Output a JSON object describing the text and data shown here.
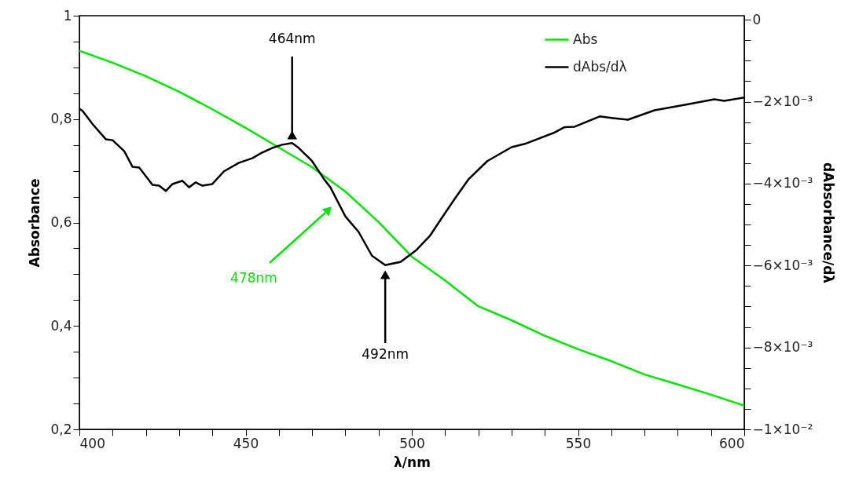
{
  "chart_data": {
    "type": "line",
    "xlabel": "λ/nm",
    "ylabel": "Absorbance",
    "y2label": "dAbsorbance/dλ",
    "xlim": [
      400,
      600
    ],
    "xticks": [
      400,
      {
        "value": 410,
        "label": null
      },
      {
        "value": 420,
        "label": null
      },
      {
        "value": 430,
        "label": null
      },
      {
        "value": 440,
        "label": null
      },
      450,
      {
        "value": 460,
        "label": null
      },
      {
        "value": 470,
        "label": null
      },
      {
        "value": 480,
        "label": null
      },
      {
        "value": 490,
        "label": null
      },
      500,
      {
        "value": 510,
        "label": null
      },
      {
        "value": 520,
        "label": null
      },
      {
        "value": 530,
        "label": null
      },
      {
        "value": 540,
        "label": null
      },
      550,
      {
        "value": 560,
        "label": null
      },
      {
        "value": 570,
        "label": null
      },
      {
        "value": 580,
        "label": null
      },
      {
        "value": 590,
        "label": null
      },
      600
    ],
    "ylim": [
      0.2,
      1
    ],
    "yticks": [
      {
        "value": 0.2,
        "label": "0,2"
      },
      {
        "value": 0.25,
        "label": null
      },
      {
        "value": 0.3,
        "label": null
      },
      {
        "value": 0.35,
        "label": null
      },
      {
        "value": 0.4,
        "label": "0,4"
      },
      {
        "value": 0.45,
        "label": null
      },
      {
        "value": 0.5,
        "label": null
      },
      {
        "value": 0.55,
        "label": null
      },
      {
        "value": 0.6,
        "label": "0,6"
      },
      {
        "value": 0.65,
        "label": null
      },
      {
        "value": 0.7,
        "label": null
      },
      {
        "value": 0.75,
        "label": null
      },
      {
        "value": 0.8,
        "label": "0,8"
      },
      {
        "value": 0.85,
        "label": null
      },
      {
        "value": 0.9,
        "label": null
      },
      {
        "value": 0.95,
        "label": null
      },
      1
    ],
    "y2lim": [
      -0.01,
      0.0001
    ],
    "y2ticks": [
      {
        "value": -0.01,
        "label": "−1×10⁻²"
      },
      {
        "value": -0.0095,
        "label": null
      },
      {
        "value": -0.009,
        "label": null
      },
      {
        "value": -0.0085,
        "label": null
      },
      {
        "value": -0.008,
        "label": "−8×10⁻³"
      },
      {
        "value": -0.0075,
        "label": null
      },
      {
        "value": -0.007,
        "label": null
      },
      {
        "value": -0.0065,
        "label": null
      },
      {
        "value": -0.006,
        "label": "−6×10⁻³"
      },
      {
        "value": -0.0055,
        "label": null
      },
      {
        "value": -0.005,
        "label": null
      },
      {
        "value": -0.0045,
        "label": null
      },
      {
        "value": -0.004,
        "label": "−4×10⁻³"
      },
      {
        "value": -0.0035,
        "label": null
      },
      {
        "value": -0.003,
        "label": null
      },
      {
        "value": -0.0025,
        "label": null
      },
      {
        "value": -0.002,
        "label": "−2×10⁻³"
      },
      {
        "value": -0.0015,
        "label": null
      },
      {
        "value": -0.001,
        "label": null
      },
      {
        "value": -0.0005,
        "label": null
      },
      0
    ],
    "grid": false,
    "legend": "top right",
    "marker": "none",
    "line_style": "solid",
    "series": [
      {
        "name": "Abs",
        "color": "#00e600",
        "x": [
          400,
          410,
          420,
          430,
          440,
          450,
          460,
          470,
          480,
          490,
          500,
          510,
          520,
          530,
          540,
          550,
          560,
          570,
          580,
          590,
          600
        ],
        "values": [
          0.932,
          0.909,
          0.883,
          0.853,
          0.819,
          0.783,
          0.745,
          0.707,
          0.66,
          0.601,
          0.534,
          0.488,
          0.438,
          0.411,
          0.381,
          0.355,
          0.332,
          0.306,
          0.287,
          0.267,
          0.246
        ]
      },
      {
        "name": "dAbs/dλ",
        "color": "#000000",
        "axis": "y2",
        "x": [
          400,
          401,
          404,
          408,
          410,
          413.5,
          416,
          418,
          422,
          424,
          426,
          428,
          431,
          433,
          435,
          437,
          440,
          443.5,
          448,
          452,
          455,
          458,
          461,
          464,
          466,
          470,
          473.5,
          475.5,
          480,
          484,
          488,
          492,
          496.7,
          501.4,
          505.4,
          509,
          513,
          517,
          522.7,
          530,
          534,
          543,
          546,
          549,
          556.5,
          560.5,
          565,
          573,
          582.5,
          591,
          594,
          600
        ],
        "values": [
          -0.00217,
          -0.00223,
          -0.00255,
          -0.00292,
          -0.00294,
          -0.00321,
          -0.00359,
          -0.00361,
          -0.00403,
          -0.00405,
          -0.00418,
          -0.00401,
          -0.00393,
          -0.00409,
          -0.00397,
          -0.00405,
          -0.00401,
          -0.0037,
          -0.00349,
          -0.00338,
          -0.00324,
          -0.00313,
          -0.00305,
          -0.00301,
          -0.00313,
          -0.00345,
          -0.00388,
          -0.00409,
          -0.0048,
          -0.00518,
          -0.00576,
          -0.00599,
          -0.00591,
          -0.00562,
          -0.00528,
          -0.00484,
          -0.00436,
          -0.0039,
          -0.00345,
          -0.00311,
          -0.00303,
          -0.00275,
          -0.00262,
          -0.00261,
          -0.00236,
          -0.0024,
          -0.00244,
          -0.00221,
          -0.00207,
          -0.00194,
          -0.00198,
          -0.0019
        ]
      }
    ],
    "annotations": [
      {
        "text": "464nm",
        "x": 464
      },
      "478nm",
      {
        "text": "492nm",
        "x": 492
      }
    ]
  }
}
